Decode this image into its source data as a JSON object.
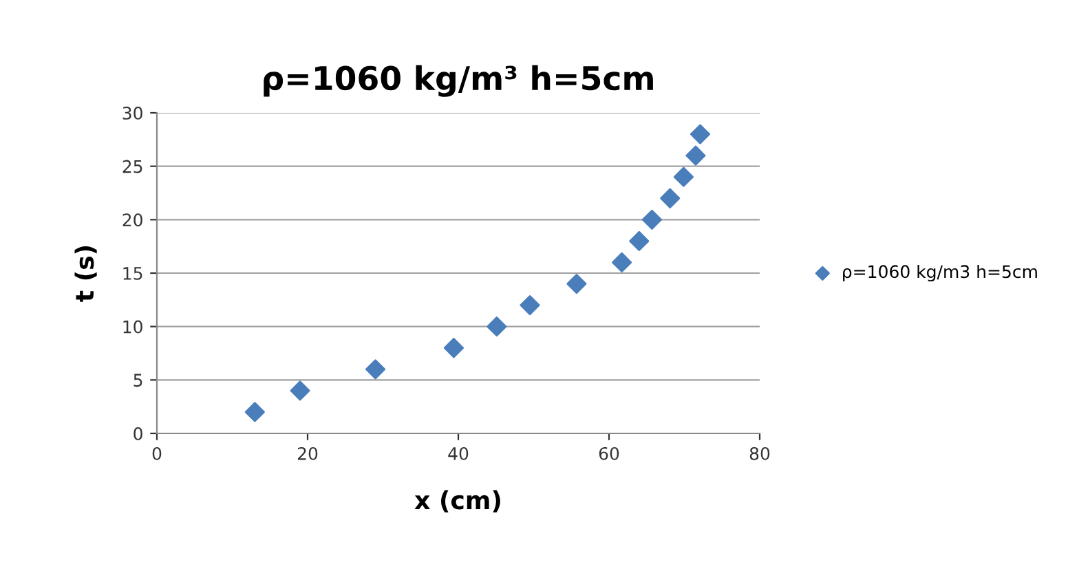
{
  "chart_data": {
    "type": "scatter",
    "title": "ρ=1060 kg/m³ h=5cm",
    "xlabel": "x (cm)",
    "ylabel": "t (s)",
    "series": [
      {
        "name": "ρ=1060 kg/m3 h=5cm",
        "color": "#4a7ebb",
        "x": [
          13,
          19,
          29,
          39.4,
          45.1,
          49.5,
          55.7,
          61.7,
          64,
          65.7,
          68.1,
          69.9,
          71.5,
          72.1
        ],
        "values": [
          2,
          4,
          6,
          8,
          10,
          12,
          14,
          16,
          18,
          20,
          22,
          24,
          26,
          28
        ]
      }
    ],
    "xlim": [
      0,
      80
    ],
    "xticks": [
      0,
      20,
      40,
      60,
      80
    ],
    "ylim": [
      0,
      30
    ],
    "yticks": [
      0,
      5,
      10,
      15,
      20,
      25,
      30
    ],
    "grid": "y",
    "legend": "right",
    "marker": "diamond"
  }
}
